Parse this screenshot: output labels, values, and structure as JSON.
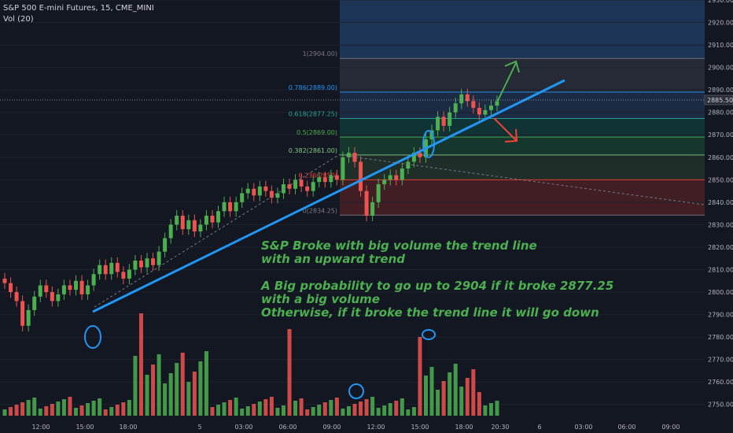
{
  "header": {
    "symbol_line": "S&P 500 E-mini Futures, 15, CME_MINI",
    "volume_line": "Vol (20)"
  },
  "annotation": {
    "line1": "S&P Broke with big volume the trend line",
    "line2": "with an upward trend",
    "line3": "A Big probability to go up to 2904 if it broke 2877.25",
    "line4": "with a big volume",
    "line5": "Otherwise, if it broke the trend line it will go down"
  },
  "colors": {
    "background": "#131722",
    "up": "#26a69a",
    "up_candle": "#4caf50",
    "down": "#ef5350",
    "trendline": "#2196f3",
    "text": "#b2b5be"
  },
  "chart_data": {
    "type": "candlestick",
    "y_axis": {
      "min": 2745,
      "max": 2930,
      "ticks": [
        2750,
        2760,
        2770,
        2780,
        2790,
        2800,
        2810,
        2820,
        2830,
        2840,
        2850,
        2860,
        2870,
        2880,
        2890,
        2900,
        2910,
        2920,
        2930
      ]
    },
    "x_axis": {
      "labels": [
        "12:00",
        "15:00",
        "18:00",
        "5",
        "03:00",
        "06:00",
        "09:00",
        "12:00",
        "15:00",
        "18:00",
        "20:30",
        "6",
        "03:00",
        "06:00",
        "09:00"
      ]
    },
    "last_price": "2885.50",
    "fibonacci": [
      {
        "label": "1(2904.00)",
        "level": 2904.0
      },
      {
        "label": "0.786(2889.00)",
        "level": 2889.0
      },
      {
        "label": "0.618(2877.25)",
        "level": 2877.25
      },
      {
        "label": "0.5(2869.00)",
        "level": 2869.0
      },
      {
        "label": "0.382(2861.00)",
        "level": 2861.0
      },
      {
        "label": "0.236(2850)",
        "level": 2850.0
      },
      {
        "label": "0(2834.25)",
        "level": 2834.25
      }
    ],
    "trendline": {
      "from": [
        2793,
        0
      ],
      "to": [
        2895,
        1
      ]
    },
    "series_close": [
      2804,
      2800,
      2796,
      2785,
      2792,
      2798,
      2803,
      2800,
      2796,
      2799,
      2803,
      2801,
      2805,
      2799,
      2803,
      2808,
      2812,
      2808,
      2813,
      2809,
      2806,
      2810,
      2814,
      2811,
      2815,
      2812,
      2818,
      2824,
      2830,
      2834,
      2828,
      2832,
      2827,
      2830,
      2834,
      2831,
      2836,
      2840,
      2836,
      2840,
      2844,
      2846,
      2843,
      2847,
      2845,
      2842,
      2844,
      2848,
      2846,
      2850,
      2847,
      2845,
      2849,
      2851,
      2849,
      2852,
      2850,
      2860,
      2862,
      2858,
      2845,
      2834,
      2840,
      2848,
      2850,
      2852,
      2850,
      2855,
      2858,
      2862,
      2860,
      2868,
      2872,
      2878,
      2874,
      2880,
      2884,
      2888,
      2885,
      2882,
      2879,
      2881,
      2883,
      2885
    ]
  }
}
